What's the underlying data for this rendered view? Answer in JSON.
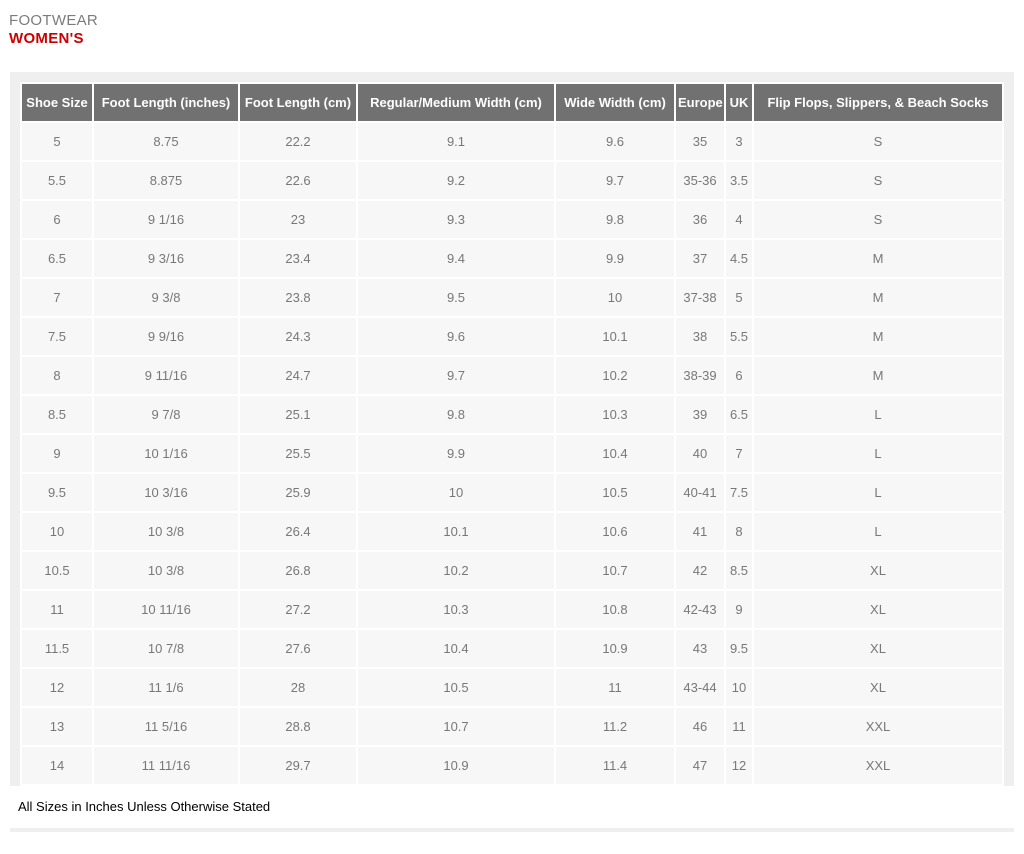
{
  "header": {
    "category": "FOOTWEAR",
    "subcategory": "WOMEN'S"
  },
  "table": {
    "columns": [
      "Shoe Size",
      "Foot Length (inches)",
      "Foot Length (cm)",
      "Regular/Medium Width (cm)",
      "Wide Width (cm)",
      "Europe",
      "UK",
      "Flip Flops, Slippers, & Beach Socks"
    ],
    "rows": [
      [
        "5",
        "8.75",
        "22.2",
        "9.1",
        "9.6",
        "35",
        "3",
        "S"
      ],
      [
        "5.5",
        "8.875",
        "22.6",
        "9.2",
        "9.7",
        "35-36",
        "3.5",
        "S"
      ],
      [
        "6",
        "9 1/16",
        "23",
        "9.3",
        "9.8",
        "36",
        "4",
        "S"
      ],
      [
        "6.5",
        "9 3/16",
        "23.4",
        "9.4",
        "9.9",
        "37",
        "4.5",
        "M"
      ],
      [
        "7",
        "9 3/8",
        "23.8",
        "9.5",
        "10",
        "37-38",
        "5",
        "M"
      ],
      [
        "7.5",
        "9 9/16",
        "24.3",
        "9.6",
        "10.1",
        "38",
        "5.5",
        "M"
      ],
      [
        "8",
        "9 11/16",
        "24.7",
        "9.7",
        "10.2",
        "38-39",
        "6",
        "M"
      ],
      [
        "8.5",
        "9 7/8",
        "25.1",
        "9.8",
        "10.3",
        "39",
        "6.5",
        "L"
      ],
      [
        "9",
        "10 1/16",
        "25.5",
        "9.9",
        "10.4",
        "40",
        "7",
        "L"
      ],
      [
        "9.5",
        "10 3/16",
        "25.9",
        "10",
        "10.5",
        "40-41",
        "7.5",
        "L"
      ],
      [
        "10",
        "10 3/8",
        "26.4",
        "10.1",
        "10.6",
        "41",
        "8",
        "L"
      ],
      [
        "10.5",
        "10 3/8",
        "26.8",
        "10.2",
        "10.7",
        "42",
        "8.5",
        "XL"
      ],
      [
        "11",
        "10 11/16",
        "27.2",
        "10.3",
        "10.8",
        "42-43",
        "9",
        "XL"
      ],
      [
        "11.5",
        "10 7/8",
        "27.6",
        "10.4",
        "10.9",
        "43",
        "9.5",
        "XL"
      ],
      [
        "12",
        "11 1/6",
        "28",
        "10.5",
        "11",
        "43-44",
        "10",
        "XL"
      ],
      [
        "13",
        "11 5/16",
        "28.8",
        "10.7",
        "11.2",
        "46",
        "11",
        "XXL"
      ],
      [
        "14",
        "11 11/16",
        "29.7",
        "10.9",
        "11.4",
        "47",
        "12",
        "XXL"
      ]
    ]
  },
  "footnote": "All Sizes in Inches Unless Otherwise Stated",
  "colors": {
    "accent_red": "#cc0000",
    "table_header_bg": "#717171",
    "table_row_bg": "#f7f7f7",
    "panel_bg": "#efefef"
  }
}
